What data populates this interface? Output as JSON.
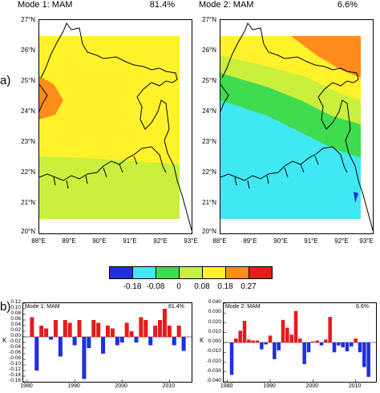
{
  "panel_a_label": "a)",
  "panel_b_label": "b)",
  "maps": [
    {
      "title": "Mode 1: MAM",
      "variance": "81.4%"
    },
    {
      "title": "Mode 2: MAM",
      "variance": "6.6%"
    }
  ],
  "lat_labels": [
    "27°N",
    "26°N",
    "25°N",
    "24°N",
    "23°N",
    "22°N",
    "21°N",
    "20°N"
  ],
  "lon_labels": [
    "88°E",
    "89°E",
    "90°E",
    "91°E",
    "92°E",
    "93°E"
  ],
  "colorbar": {
    "colors": [
      "#1f2fe0",
      "#40e8f4",
      "#40dc50",
      "#c8f03c",
      "#fff22a",
      "#ff8c1a",
      "#e81a1a"
    ],
    "ticks": [
      "-0.18",
      "-0.08",
      "0",
      "0.08",
      "0.18",
      "0.27"
    ]
  },
  "chart_data": [
    {
      "type": "bar",
      "title": "Mode 1: MAM",
      "annotation": "81.4%",
      "ylabel": "K",
      "ylim": [
        -0.16,
        0.12
      ],
      "yticks": [
        "0.12",
        "0.10",
        "0.08",
        "0.06",
        "0.04",
        "0.02",
        "0.00",
        "-0.02",
        "-0.04",
        "-0.06",
        "-0.08",
        "-0.10",
        "-0.12",
        "-0.14",
        "-0.16"
      ],
      "xticks": [
        "1980",
        "1990",
        "2000",
        "2010"
      ],
      "x": [
        1981,
        1982,
        1983,
        1984,
        1985,
        1986,
        1987,
        1988,
        1989,
        1990,
        1991,
        1992,
        1993,
        1994,
        1995,
        1996,
        1997,
        1998,
        1999,
        2000,
        2001,
        2002,
        2003,
        2004,
        2005,
        2006,
        2007,
        2008,
        2009,
        2010,
        2011,
        2012,
        2013
      ],
      "values": [
        0.07,
        -0.12,
        0.04,
        0.03,
        -0.01,
        0.06,
        -0.07,
        0.06,
        0.05,
        -0.03,
        0.06,
        -0.15,
        -0.04,
        0.06,
        0.05,
        -0.06,
        0.04,
        0.03,
        -0.03,
        -0.02,
        0.05,
        0.02,
        -0.02,
        0.07,
        0.06,
        -0.03,
        0.04,
        0.06,
        0.1,
        0.04,
        -0.03,
        0.04,
        -0.05
      ],
      "pos_color": "#e81a1a",
      "neg_color": "#1f2fe0"
    },
    {
      "type": "bar",
      "title": "Mode 2: MAM",
      "annotation": "6.6%",
      "ylabel": "K",
      "ylim": [
        -0.04,
        0.04
      ],
      "yticks": [
        "0.040",
        "0.030",
        "0.020",
        "0.010",
        "0.000",
        "-0.010",
        "-0.020",
        "-0.030",
        "-0.040"
      ],
      "xticks": [
        "1980",
        "1990",
        "2000",
        "2010"
      ],
      "x": [
        1981,
        1982,
        1983,
        1984,
        1985,
        1986,
        1987,
        1988,
        1989,
        1990,
        1991,
        1992,
        1993,
        1994,
        1995,
        1996,
        1997,
        1998,
        1999,
        2000,
        2001,
        2002,
        2003,
        2004,
        2005,
        2006,
        2007,
        2008,
        2009,
        2010,
        2011,
        2012,
        2013
      ],
      "values": [
        -0.033,
        0.004,
        0.012,
        0.022,
        0.003,
        0.002,
        0.002,
        -0.007,
        -0.002,
        0.007,
        -0.017,
        -0.008,
        0.023,
        0.015,
        0.008,
        0.032,
        0.004,
        -0.022,
        -0.01,
        0.001,
        0.002,
        -0.003,
        0.003,
        0.026,
        -0.01,
        -0.003,
        -0.005,
        -0.009,
        -0.004,
        0.004,
        -0.01,
        -0.025,
        -0.035
      ],
      "pos_color": "#e81a1a",
      "neg_color": "#1f2fe0"
    }
  ]
}
